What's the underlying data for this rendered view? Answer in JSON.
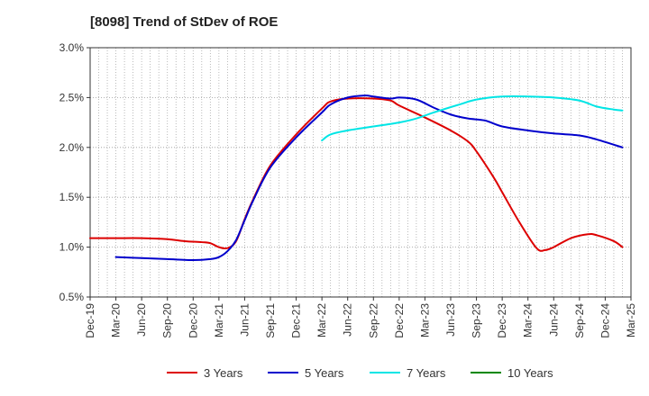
{
  "chart_data": {
    "type": "line",
    "title": "[8098]  Trend of StDev of ROE",
    "xlabel": "",
    "ylabel": "",
    "x_ticks": [
      "Dec-19",
      "Mar-20",
      "Jun-20",
      "Sep-20",
      "Dec-20",
      "Mar-21",
      "Jun-21",
      "Sep-21",
      "Dec-21",
      "Mar-22",
      "Jun-22",
      "Sep-22",
      "Dec-22",
      "Mar-23",
      "Jun-23",
      "Sep-23",
      "Dec-23",
      "Mar-24",
      "Jun-24",
      "Sep-24",
      "Dec-24",
      "Mar-25"
    ],
    "y_ticks": [
      "0.5%",
      "1.0%",
      "1.5%",
      "2.0%",
      "2.5%",
      "3.0%"
    ],
    "ylim": [
      0.5,
      3.0
    ],
    "grid": true,
    "legend_position": "bottom",
    "series": [
      {
        "name": "3 Years",
        "color": "#dd0000",
        "points": [
          [
            "Dec-19",
            1.09
          ],
          [
            "Mar-20",
            1.09
          ],
          [
            "Jun-20",
            1.09
          ],
          [
            "Sep-20",
            1.08
          ],
          [
            "Nov-20",
            1.06
          ],
          [
            "Jan-21",
            1.05
          ],
          [
            "Feb-21",
            1.04
          ],
          [
            "Mar-21",
            1.0
          ],
          [
            "Apr-21",
            0.99
          ],
          [
            "May-21",
            1.06
          ],
          [
            "Jun-21",
            1.28
          ],
          [
            "Jul-21",
            1.48
          ],
          [
            "Sep-21",
            1.82
          ],
          [
            "Dec-21",
            2.13
          ],
          [
            "Mar-22",
            2.39
          ],
          [
            "Apr-22",
            2.46
          ],
          [
            "Jun-22",
            2.49
          ],
          [
            "Sep-22",
            2.49
          ],
          [
            "Nov-22",
            2.47
          ],
          [
            "Dec-22",
            2.42
          ],
          [
            "Mar-23",
            2.3
          ],
          [
            "Jun-23",
            2.17
          ],
          [
            "Aug-23",
            2.06
          ],
          [
            "Sep-23",
            1.96
          ],
          [
            "Nov-23",
            1.7
          ],
          [
            "Dec-23",
            1.55
          ],
          [
            "Feb-24",
            1.25
          ],
          [
            "Apr-24",
            0.99
          ],
          [
            "May-24",
            0.97
          ],
          [
            "Jun-24",
            1.0
          ],
          [
            "Aug-24",
            1.09
          ],
          [
            "Oct-24",
            1.13
          ],
          [
            "Nov-24",
            1.12
          ],
          [
            "Jan-25",
            1.06
          ],
          [
            "Feb-25",
            1.0
          ]
        ]
      },
      {
        "name": "5 Years",
        "color": "#0000cc",
        "points": [
          [
            "Mar-20",
            0.9
          ],
          [
            "Jun-20",
            0.89
          ],
          [
            "Sep-20",
            0.88
          ],
          [
            "Dec-20",
            0.87
          ],
          [
            "Feb-21",
            0.88
          ],
          [
            "Mar-21",
            0.9
          ],
          [
            "Apr-21",
            0.96
          ],
          [
            "May-21",
            1.07
          ],
          [
            "Jun-21",
            1.27
          ],
          [
            "Jul-21",
            1.47
          ],
          [
            "Sep-21",
            1.8
          ],
          [
            "Dec-21",
            2.1
          ],
          [
            "Mar-22",
            2.35
          ],
          [
            "Apr-22",
            2.43
          ],
          [
            "Jun-22",
            2.5
          ],
          [
            "Aug-22",
            2.52
          ],
          [
            "Sep-22",
            2.51
          ],
          [
            "Nov-22",
            2.49
          ],
          [
            "Dec-22",
            2.5
          ],
          [
            "Feb-23",
            2.48
          ],
          [
            "Apr-23",
            2.4
          ],
          [
            "Jun-23",
            2.33
          ],
          [
            "Aug-23",
            2.29
          ],
          [
            "Oct-23",
            2.27
          ],
          [
            "Dec-23",
            2.21
          ],
          [
            "Mar-24",
            2.17
          ],
          [
            "Jun-24",
            2.14
          ],
          [
            "Sep-24",
            2.12
          ],
          [
            "Nov-24",
            2.08
          ],
          [
            "Feb-25",
            2.0
          ]
        ]
      },
      {
        "name": "7 Years",
        "color": "#00e5e5",
        "points": [
          [
            "Mar-22",
            2.07
          ],
          [
            "Apr-22",
            2.13
          ],
          [
            "Jun-22",
            2.17
          ],
          [
            "Sep-22",
            2.21
          ],
          [
            "Dec-22",
            2.25
          ],
          [
            "Feb-23",
            2.29
          ],
          [
            "Apr-23",
            2.35
          ],
          [
            "Jul-23",
            2.43
          ],
          [
            "Sep-23",
            2.48
          ],
          [
            "Dec-23",
            2.51
          ],
          [
            "Mar-24",
            2.51
          ],
          [
            "Jun-24",
            2.5
          ],
          [
            "Sep-24",
            2.47
          ],
          [
            "Nov-24",
            2.41
          ],
          [
            "Jan-25",
            2.38
          ],
          [
            "Feb-25",
            2.37
          ]
        ]
      },
      {
        "name": "10 Years",
        "color": "#008800",
        "points": []
      }
    ]
  }
}
